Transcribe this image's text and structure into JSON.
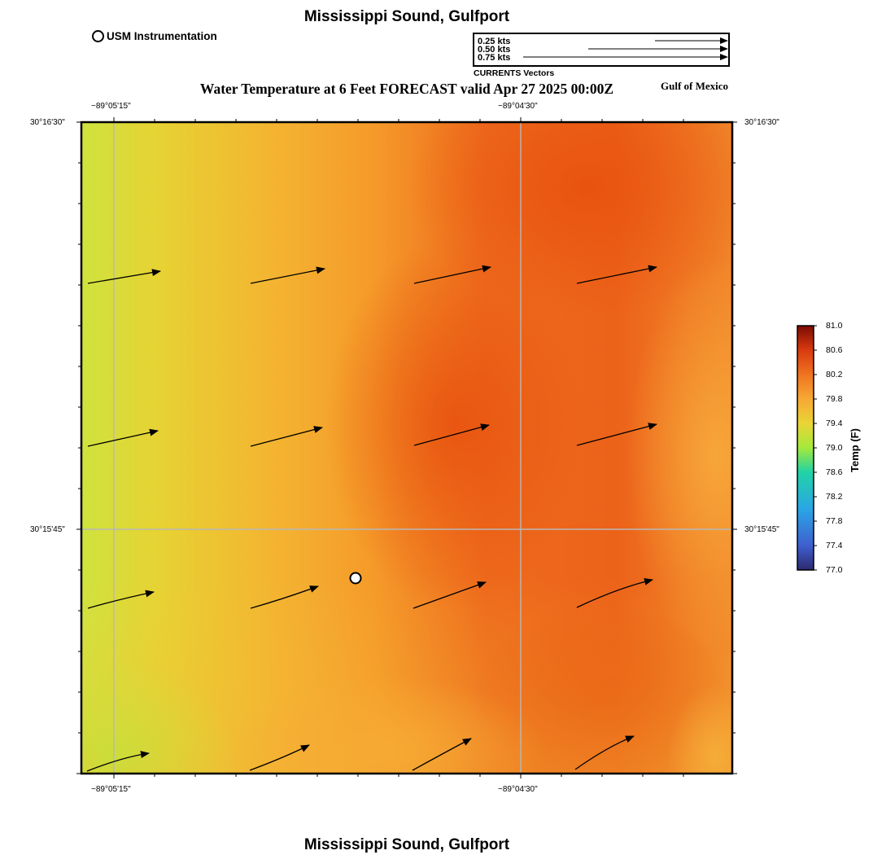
{
  "header": {
    "title": "Mississippi Sound, Gulfport",
    "instrument_legend": "USM Instrumentation",
    "vector_scale": [
      "0.25 kts",
      "0.50 kts",
      "0.75 kts"
    ],
    "vector_caption": "CURRENTS Vectors",
    "map_title": "Water Temperature at 6 Feet FORECAST valid Apr 27 2025 00:00Z",
    "region_label": "Gulf of Mexico"
  },
  "footer": {
    "title": "Mississippi Sound, Gulfport"
  },
  "axes": {
    "lon_labels": [
      "−89°05'15\"",
      "−89°04'30\""
    ],
    "lat_labels": [
      "30°16'30\"",
      "30°15'45\""
    ]
  },
  "colorbar": {
    "title": "Temp (F)",
    "min": 77.0,
    "max": 81.0,
    "ticks": [
      "81.0",
      "80.6",
      "80.2",
      "79.8",
      "79.4",
      "79.0",
      "78.6",
      "78.2",
      "77.8",
      "77.4",
      "77.0"
    ]
  },
  "colors": {
    "grid": "#b8b8b8",
    "field_low": "#bfe83a",
    "field_mid": "#f7a530",
    "field_high": "#ea5a16"
  },
  "map": {
    "station_marker": "usm-instrumentation-station"
  }
}
